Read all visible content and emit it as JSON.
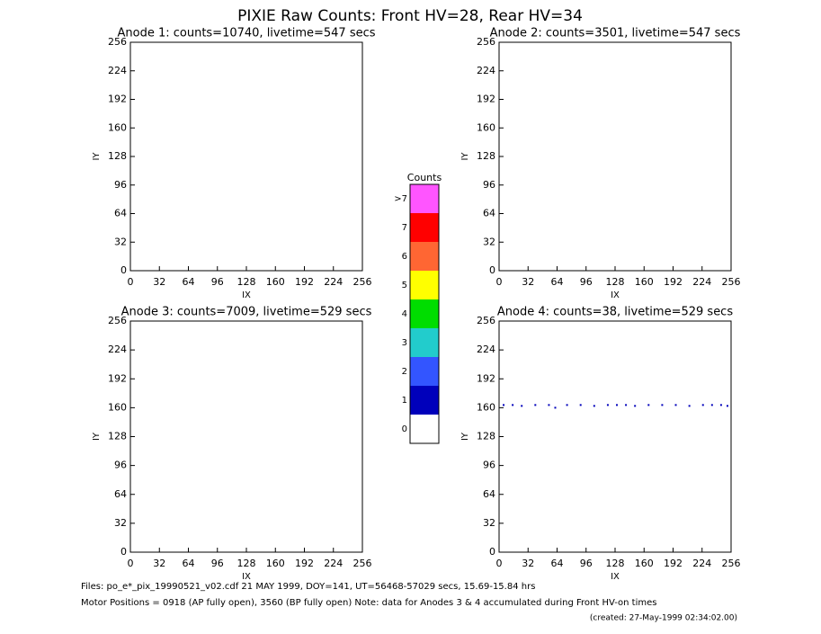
{
  "title": "PIXIE Raw Counts:  Front HV=28, Rear HV=34",
  "chart_data": [
    {
      "type": "heatmap",
      "title": "Anode 1: counts=10740, livetime=547 secs",
      "xlabel": "IX",
      "ylabel": "IY",
      "xlim": [
        0,
        256
      ],
      "ylim": [
        0,
        256
      ],
      "xticks": [
        0,
        32,
        64,
        96,
        128,
        160,
        192,
        224,
        256
      ],
      "yticks": [
        0,
        32,
        64,
        96,
        128,
        160,
        192,
        224,
        256
      ]
    },
    {
      "type": "heatmap",
      "title": "Anode 2: counts=3501, livetime=547 secs",
      "xlabel": "IX",
      "ylabel": "IY",
      "xlim": [
        0,
        256
      ],
      "ylim": [
        0,
        256
      ],
      "xticks": [
        0,
        32,
        64,
        96,
        128,
        160,
        192,
        224,
        256
      ],
      "yticks": [
        0,
        32,
        64,
        96,
        128,
        160,
        192,
        224,
        256
      ]
    },
    {
      "type": "heatmap",
      "title": "Anode 3: counts=7009, livetime=529 secs",
      "xlabel": "IX",
      "ylabel": "IY",
      "xlim": [
        0,
        256
      ],
      "ylim": [
        0,
        256
      ],
      "xticks": [
        0,
        32,
        64,
        96,
        128,
        160,
        192,
        224,
        256
      ],
      "yticks": [
        0,
        32,
        64,
        96,
        128,
        160,
        192,
        224,
        256
      ]
    },
    {
      "type": "heatmap",
      "title": "Anode 4: counts=38, livetime=529 secs",
      "xlabel": "IX",
      "ylabel": "IY",
      "xlim": [
        0,
        256
      ],
      "ylim": [
        0,
        256
      ],
      "xticks": [
        0,
        32,
        64,
        96,
        128,
        160,
        192,
        224,
        256
      ],
      "yticks": [
        0,
        32,
        64,
        96,
        128,
        160,
        192,
        224,
        256
      ],
      "color": "#0000bb",
      "x": [
        5,
        15,
        25,
        40,
        55,
        62,
        75,
        90,
        105,
        120,
        130,
        140,
        150,
        165,
        180,
        195,
        210,
        225,
        235,
        245,
        252
      ],
      "y": [
        163,
        163,
        162,
        163,
        163,
        160,
        163,
        163,
        162,
        163,
        163,
        163,
        162,
        163,
        163,
        163,
        162,
        163,
        163,
        163,
        162
      ]
    }
  ],
  "colorbar": {
    "title": "Counts",
    "labels": [
      "0",
      "1",
      "2",
      "3",
      "4",
      "5",
      "6",
      "7",
      ">7"
    ],
    "colors": [
      "#ffffff",
      "#0000bb",
      "#3355ff",
      "#22cccc",
      "#00dd00",
      "#ffff00",
      "#ff6633",
      "#ff0000",
      "#ff55ff"
    ]
  },
  "footer": [
    "Files: po_e*_pix_19990521_v02.cdf    21 MAY 1999, DOY=141, UT=56468-57029 secs, 15.69-15.84 hrs",
    "Motor Positions = 0918 (AP fully open), 3560 (BP fully open)    Note: data for Anodes 3 & 4 accumulated during Front HV-on times",
    "(created: 27-May-1999 02:34:02.00)"
  ]
}
